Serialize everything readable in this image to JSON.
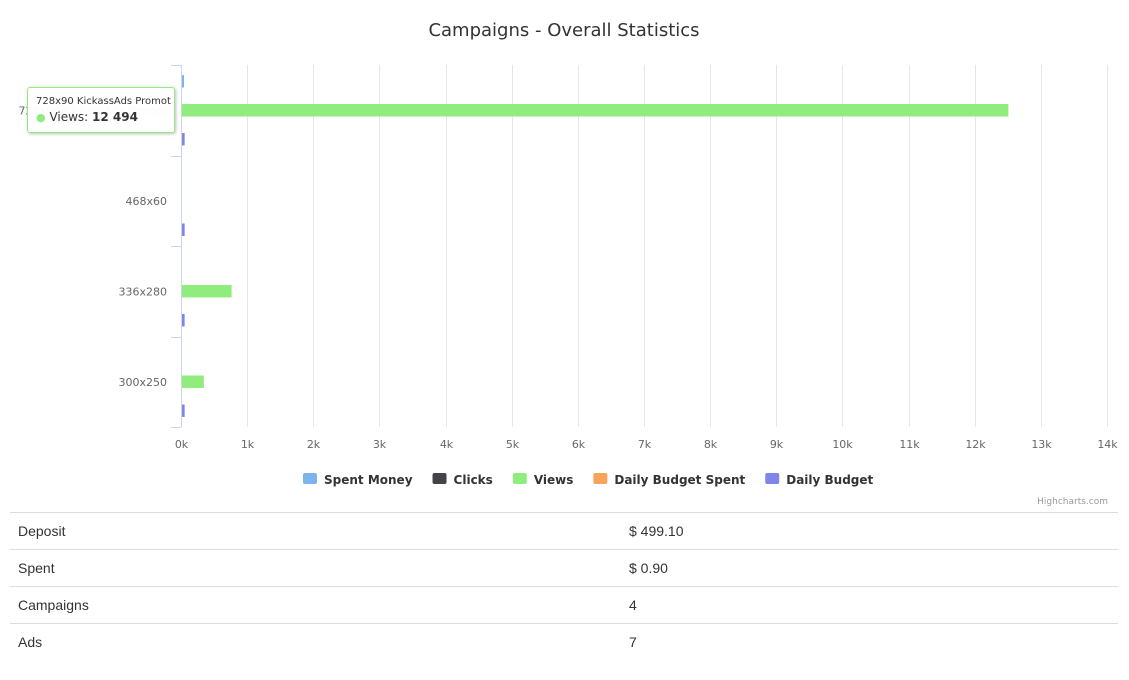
{
  "chart_data": {
    "type": "bar",
    "title": "Campaigns - Overall Statistics",
    "orientation": "horizontal",
    "categories": [
      "728x90 KickassAds Promot",
      "468x60",
      "336x280",
      "300x250"
    ],
    "axis_ticks": [
      "0k",
      "1k",
      "2k",
      "3k",
      "4k",
      "5k",
      "6k",
      "7k",
      "8k",
      "9k",
      "10k",
      "11k",
      "12k",
      "13k",
      "14k"
    ],
    "xlim": [
      0,
      14000
    ],
    "grid": true,
    "legend_position": "bottom-center",
    "series": [
      {
        "name": "Spent Money",
        "color": "#7cb5ec",
        "values": [
          0.9,
          0,
          0,
          0
        ]
      },
      {
        "name": "Clicks",
        "color": "#434348",
        "values": [
          0,
          0,
          0,
          0
        ]
      },
      {
        "name": "Views",
        "color": "#90ed7d",
        "values": [
          12494,
          0,
          750,
          330
        ]
      },
      {
        "name": "Daily Budget Spent",
        "color": "#f7a35c",
        "values": [
          0,
          0,
          0,
          0
        ]
      },
      {
        "name": "Daily Budget",
        "color": "#8085e9",
        "values": [
          40,
          40,
          40,
          40
        ]
      }
    ]
  },
  "tooltip": {
    "title": "728x90 KickassAds Promot",
    "dot": "●",
    "series_label": "Views:",
    "value": "12 494"
  },
  "credits": "Highcharts.com",
  "stats": [
    {
      "label": "Deposit",
      "value": "$ 499.10"
    },
    {
      "label": "Spent",
      "value": "$ 0.90"
    },
    {
      "label": "Campaigns",
      "value": "4"
    },
    {
      "label": "Ads",
      "value": "7"
    }
  ]
}
